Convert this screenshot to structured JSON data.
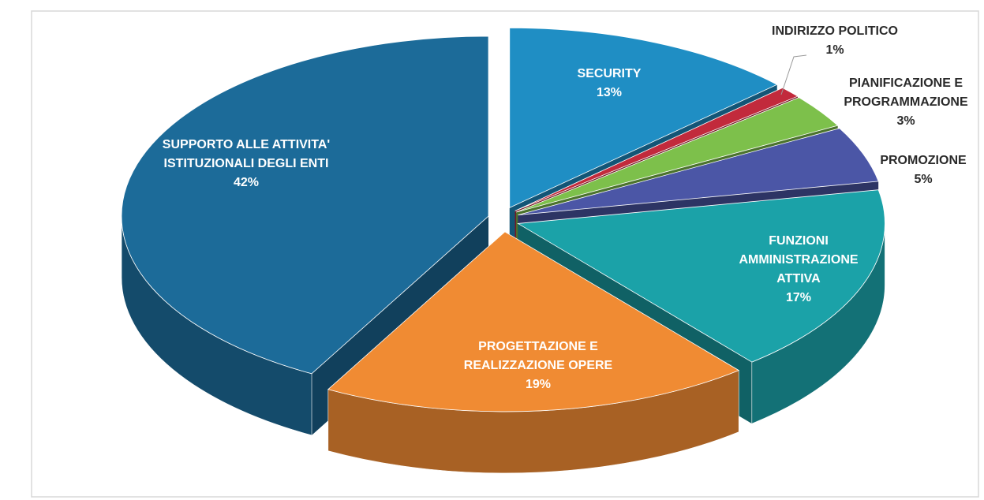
{
  "chart_data": {
    "type": "pie",
    "categories": [
      "SECURITY",
      "INDIRIZZO POLITICO",
      "PIANIFICAZIONE E PROGRAMMAZIONE",
      "PROMOZIONE",
      "FUNZIONI AMMINISTRAZIONE ATTIVA",
      "PROGETTAZIONE E REALIZZAZIONE OPERE",
      "SUPPORTO ALLE ATTIVITA' ISTITUZIONALI DEGLI ENTI"
    ],
    "values": [
      13,
      1,
      3,
      5,
      17,
      19,
      42
    ],
    "value_labels": [
      "13%",
      "1%",
      "3%",
      "5%",
      "17%",
      "19%",
      "42%"
    ],
    "colors": [
      "#1f8ec4",
      "#c22a3c",
      "#7dc04b",
      "#4b56a6",
      "#1ba2a8",
      "#f08b33",
      "#1c6b99"
    ]
  }
}
